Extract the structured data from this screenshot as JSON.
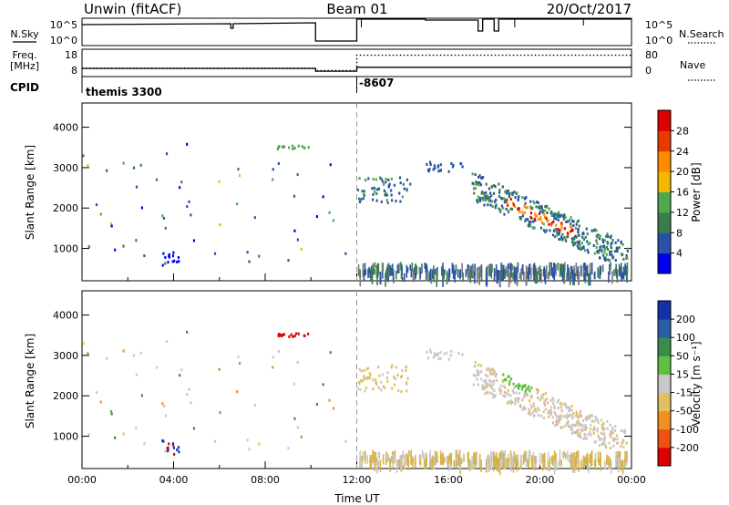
{
  "header": {
    "station": "Unwin (fitACF)",
    "beam": "Beam 01",
    "date": "20/Oct/2017"
  },
  "chart_data": [
    {
      "type": "line",
      "panel": "noise",
      "left_label": "N.Sky",
      "right_label": "N.Search",
      "left_ticks": [
        "10^5",
        "10^0"
      ],
      "right_ticks": [
        "10^5",
        "10^0"
      ]
    },
    {
      "type": "line",
      "panel": "frequency",
      "left_label_line1": "Freq.",
      "left_label_line2": "[MHz]",
      "left_ticks": [
        18,
        8
      ],
      "right_label": "Nave",
      "right_ticks": [
        80,
        0
      ],
      "freq_steps": [
        [
          0,
          10.2,
          10.5
        ],
        [
          10.2,
          12.0,
          9.2
        ],
        [
          12.0,
          24.0,
          11.0
        ]
      ],
      "nave_steps": [
        [
          0,
          10.2,
          20
        ],
        [
          10.2,
          12.0,
          12
        ],
        [
          12.0,
          24.0,
          68
        ]
      ]
    },
    {
      "type": "text",
      "panel": "cpid",
      "label": "CPID",
      "entries": [
        {
          "t": 0.1,
          "text": "themis 3300"
        },
        {
          "t": 12.0,
          "text": "-8607"
        }
      ]
    },
    {
      "type": "heatmap",
      "panel": "power",
      "ylabel": "Slant Range [km]",
      "yticks": [
        1000,
        2000,
        3000,
        4000
      ],
      "ylim": [
        200,
        4600
      ],
      "colorbar_label": "Power [dB]",
      "colorbar_ticks": [
        4,
        8,
        12,
        16,
        20,
        24,
        28
      ],
      "colorbar_colors": [
        "#0000ee",
        "#2a50a8",
        "#3a7d4c",
        "#4fa84f",
        "#f2b800",
        "#ff8c00",
        "#e83a00",
        "#dd0000"
      ]
    },
    {
      "type": "heatmap",
      "panel": "velocity",
      "ylabel": "Slant Range [km]",
      "yticks": [
        1000,
        2000,
        3000,
        4000
      ],
      "ylim": [
        200,
        4600
      ],
      "colorbar_label": "Velocity [m s⁻¹]",
      "colorbar_ticks": [
        200,
        100,
        50,
        15,
        -15,
        -50,
        -100,
        -200
      ],
      "colorbar_colors": [
        "#1133aa",
        "#2a5fa8",
        "#3b8c4a",
        "#5fbf3f",
        "#c8c8c8",
        "#e0c060",
        "#f09020",
        "#f05010",
        "#dd0000"
      ],
      "xlabel": "Time UT",
      "xticks": [
        "00:00",
        "04:00",
        "08:00",
        "12:00",
        "16:00",
        "20:00",
        "00:00"
      ],
      "xlim": [
        0,
        24
      ]
    }
  ]
}
